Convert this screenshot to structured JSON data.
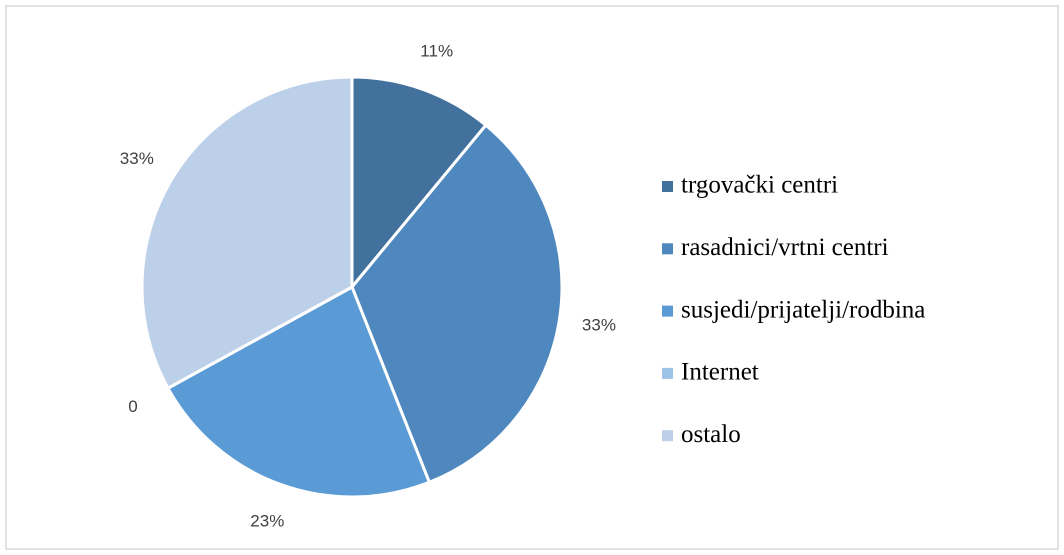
{
  "chart_data": {
    "type": "pie",
    "categories": [
      "trgovački centri",
      "rasadnici/vrtni centri",
      "susjedi/prijatelji/rodbina",
      "Internet",
      "ostalo"
    ],
    "values": [
      11,
      33,
      23,
      0,
      33
    ],
    "value_labels": [
      "11%",
      "33%",
      "23%",
      "0",
      "33%"
    ],
    "colors": [
      "#41719c",
      "#4f88be",
      "#5b9bd5",
      "#9dc3e6",
      "#bdd0ea"
    ],
    "legend": "right"
  }
}
